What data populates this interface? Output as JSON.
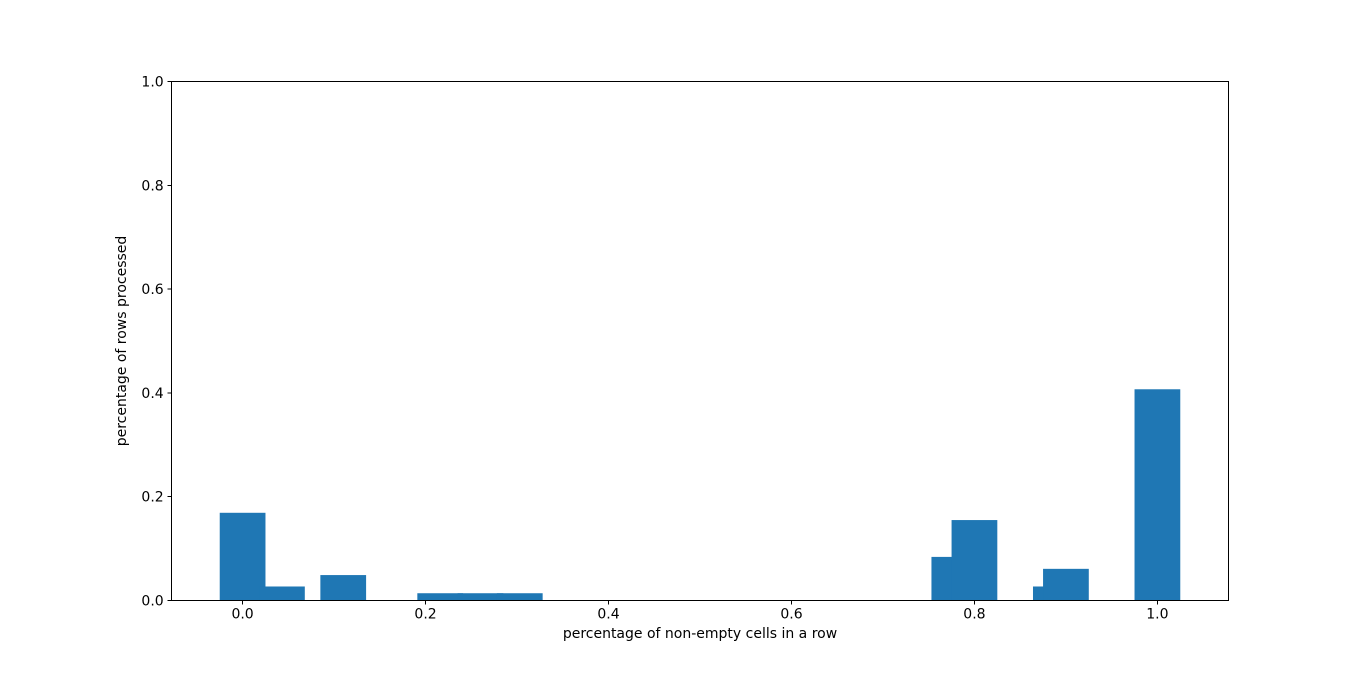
{
  "figure": {
    "background_color": "#ffffff",
    "frame_color": "#000000",
    "tick_label_color": "#000000"
  },
  "chart_data": {
    "type": "bar",
    "title": "",
    "xlabel": "percentage of non-empty cells in a row",
    "ylabel": "percentage of rows processed",
    "xlim": [
      -0.0775,
      1.0775
    ],
    "ylim": [
      0.0,
      1.0
    ],
    "xticks": [
      0.0,
      0.2,
      0.4,
      0.6,
      0.8,
      1.0
    ],
    "yticks": [
      0.0,
      0.2,
      0.4,
      0.6,
      0.8,
      1.0
    ],
    "xtick_labels": [
      "0.0",
      "0.2",
      "0.4",
      "0.6",
      "0.8",
      "1.0"
    ],
    "ytick_labels": [
      "0.0",
      "0.2",
      "0.4",
      "0.6",
      "0.8",
      "1.0"
    ],
    "grid": false,
    "legend": "none",
    "bar_width": 0.05,
    "bar_color": "#1f77b4",
    "bars": [
      {
        "x": 0.0,
        "height": 0.169
      },
      {
        "x": 0.043,
        "height": 0.027
      },
      {
        "x": 0.11,
        "height": 0.049
      },
      {
        "x": 0.216,
        "height": 0.014
      },
      {
        "x": 0.26,
        "height": 0.014
      },
      {
        "x": 0.303,
        "height": 0.014
      },
      {
        "x": 0.778,
        "height": 0.084
      },
      {
        "x": 0.8,
        "height": 0.155
      },
      {
        "x": 0.889,
        "height": 0.027
      },
      {
        "x": 0.9,
        "height": 0.061
      },
      {
        "x": 1.0,
        "height": 0.407
      }
    ]
  }
}
